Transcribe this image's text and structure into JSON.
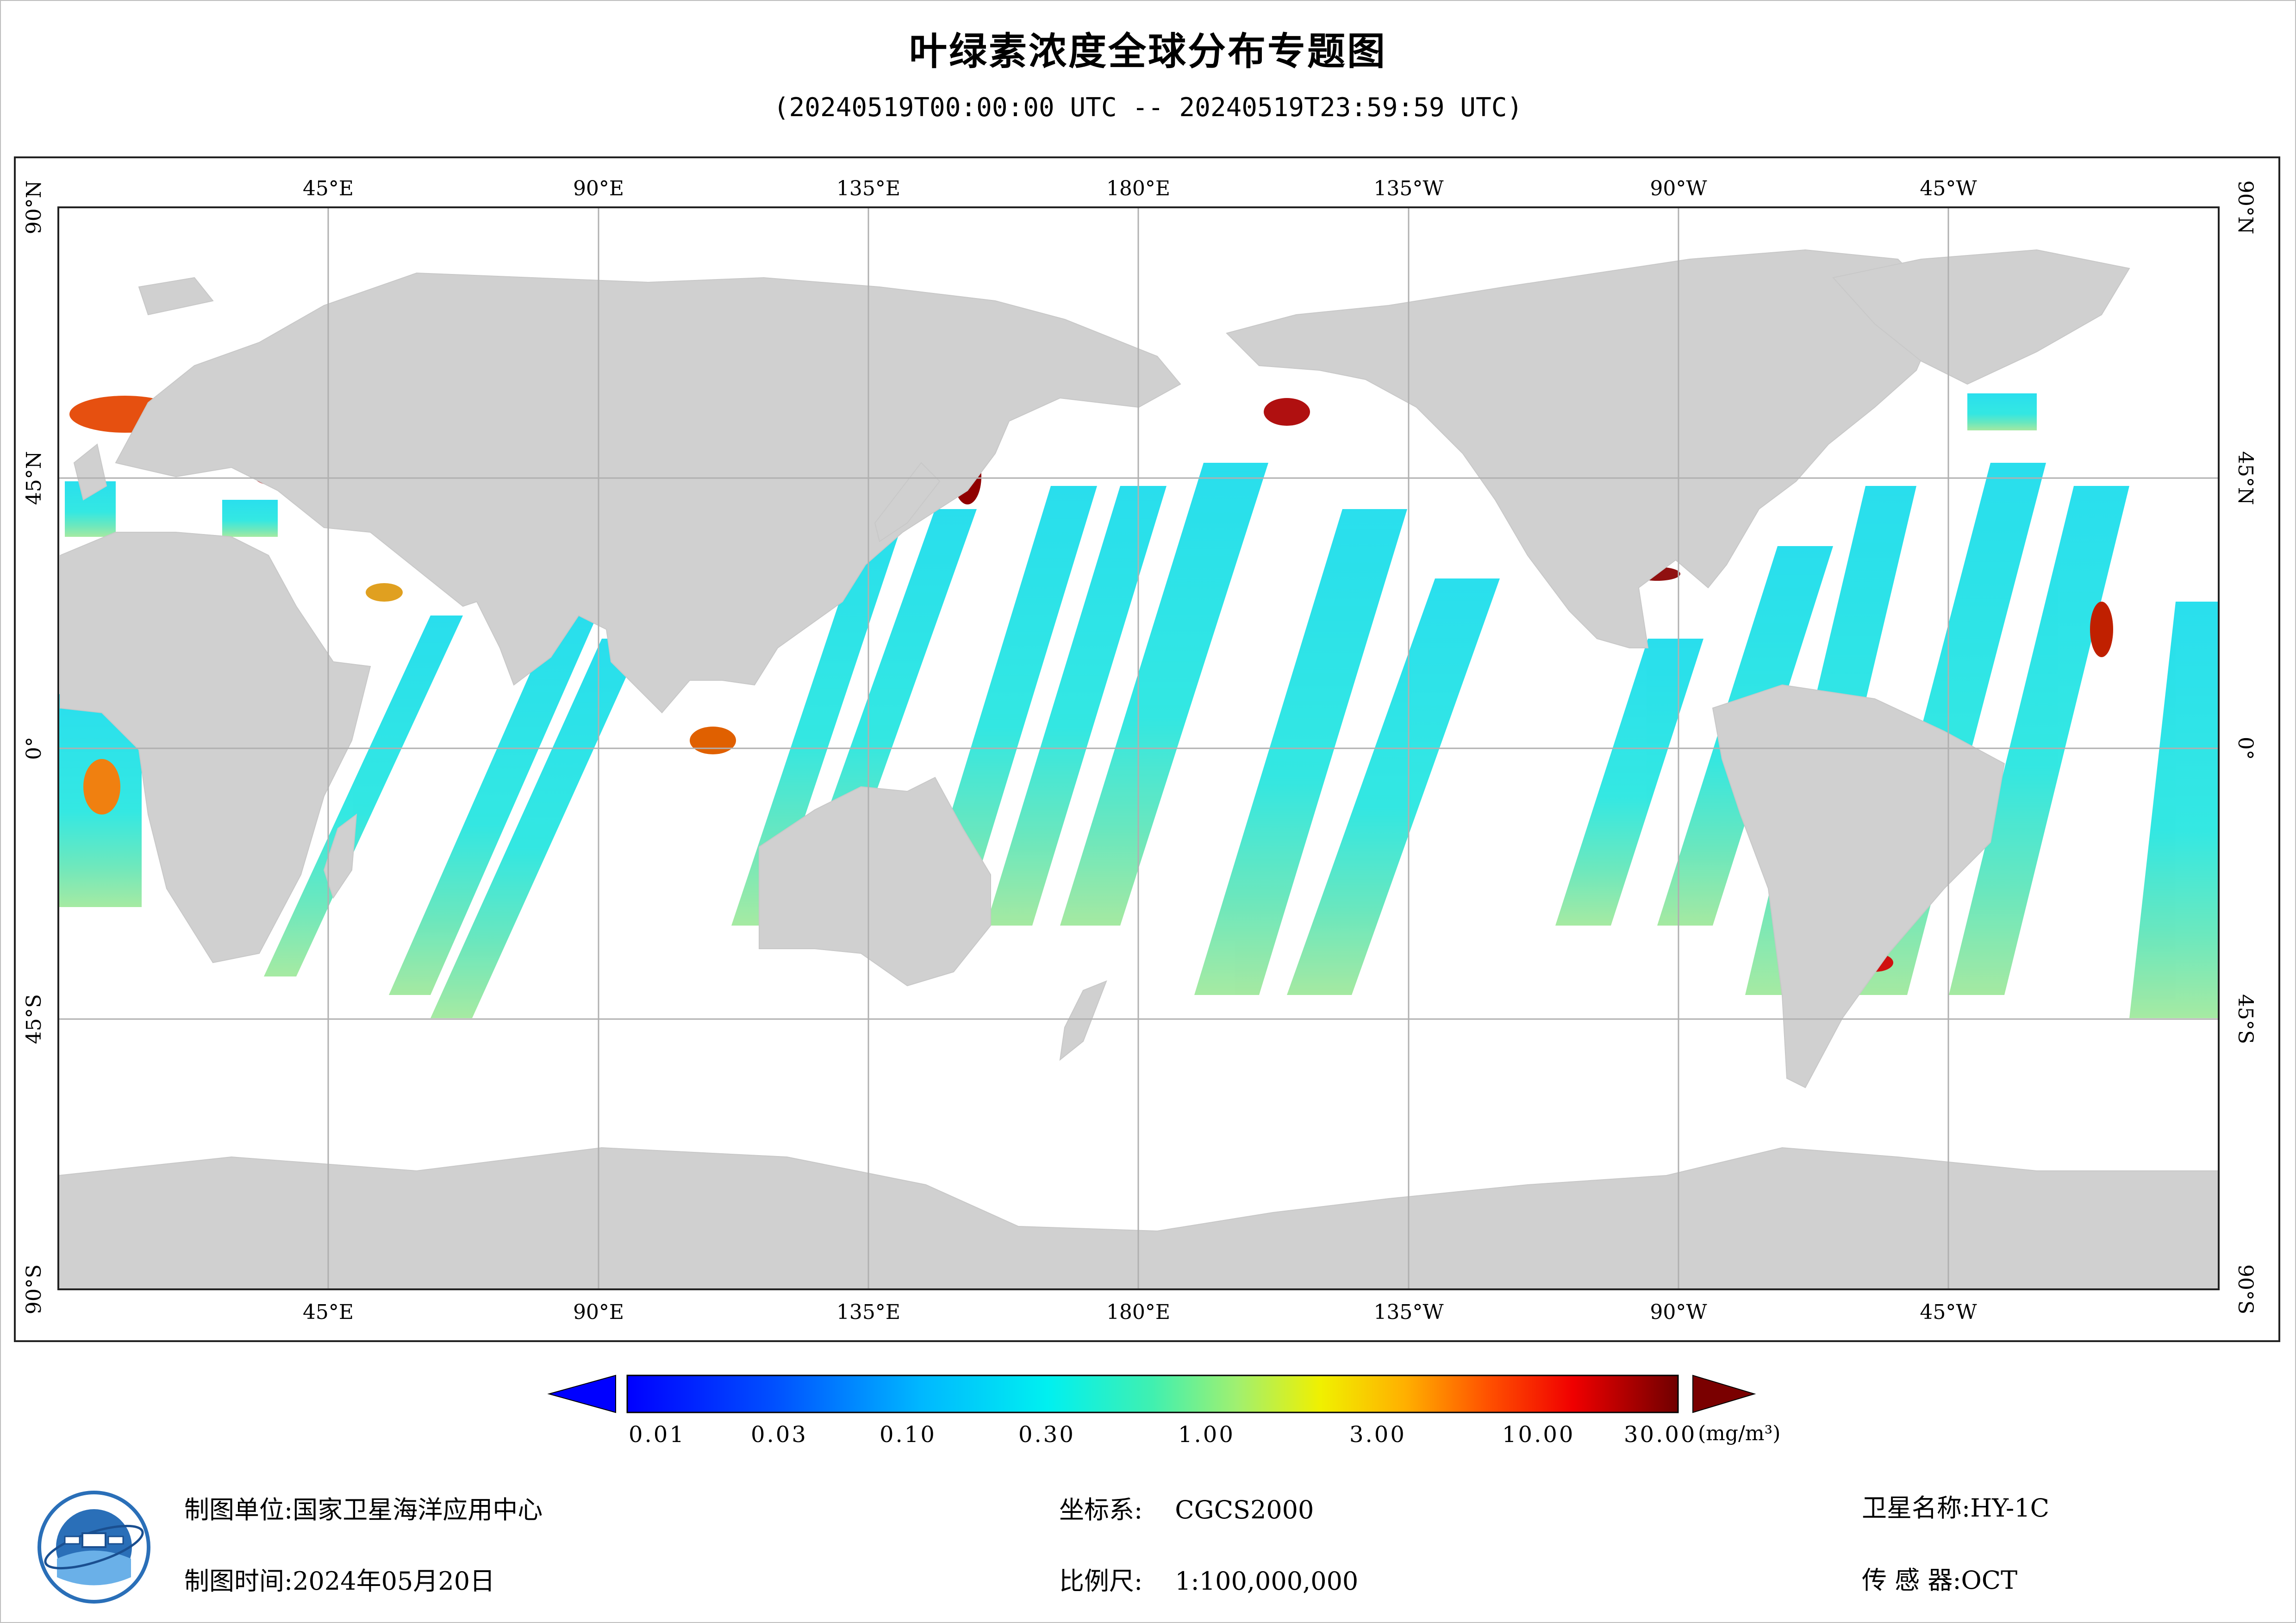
{
  "title": "叶绿素浓度全球分布专题图",
  "subtitle": "(20240519T00:00:00 UTC -- 20240519T23:59:59 UTC)",
  "map": {
    "lon_labels": [
      "45°E",
      "90°E",
      "135°E",
      "180°E",
      "135°W",
      "90°W",
      "45°W"
    ],
    "lat_labels": [
      "90°N",
      "45°N",
      "0°",
      "45°S",
      "90°S"
    ],
    "land_color": "#d0d0d0",
    "grid_color": "#b0b0b0"
  },
  "colorbar": {
    "ticks": [
      "0.01",
      "0.03",
      "0.10",
      "0.30",
      "1.00",
      "3.00",
      "10.00",
      "30.00"
    ],
    "unit": "(mg/m³)",
    "low_color": "#0000ff",
    "high_color": "#7a0000"
  },
  "info": {
    "producer_label": "制图单位:",
    "producer_value": "国家卫星海洋应用中心",
    "time_label": "制图时间:",
    "time_value": "2024年05月20日",
    "crs_label": "坐标系:",
    "crs_value": "CGCS2000",
    "scale_label": "比例尺:",
    "scale_value": "1:100,000,000",
    "satellite_label": "卫星名称:",
    "satellite_value": "HY-1C",
    "sensor_label": "传 感 器:",
    "sensor_value": "OCT"
  }
}
